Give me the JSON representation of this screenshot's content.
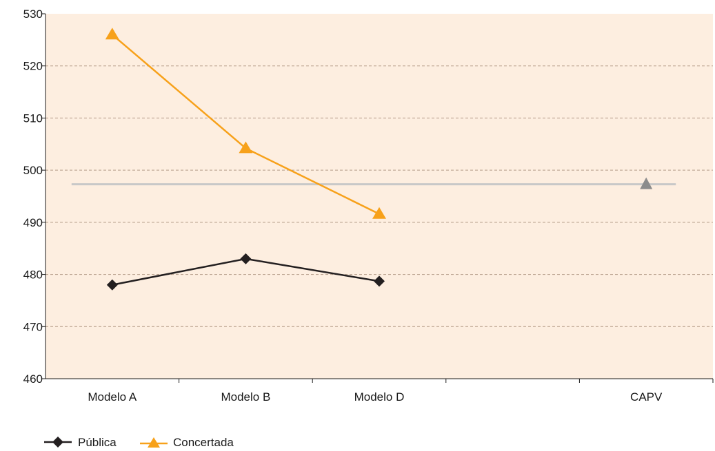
{
  "chart_data": {
    "type": "line",
    "categories": [
      "Modelo A",
      "Modelo B",
      "Modelo D",
      "",
      "CAPV"
    ],
    "series": [
      {
        "name": "Pública",
        "values": [
          478,
          483,
          478.7,
          null,
          null
        ],
        "color": "#231f20",
        "marker": "diamond"
      },
      {
        "name": "Concertada",
        "values": [
          526,
          504.2,
          491.6,
          null,
          null
        ],
        "color": "#f7a11a",
        "marker": "triangle"
      }
    ],
    "reference": {
      "label": "CAPV",
      "value": 497.3,
      "line_color": "#c8c8c8",
      "marker_color": "#8c8c8c",
      "marker": "triangle"
    },
    "ylim": [
      460,
      530
    ],
    "yticks": [
      460,
      470,
      480,
      490,
      500,
      510,
      520,
      530
    ],
    "grid": "horizontal dashed",
    "plot_background": "#fdeee0",
    "legend_position": "bottom-left",
    "title": "",
    "xlabel": "",
    "ylabel": ""
  }
}
